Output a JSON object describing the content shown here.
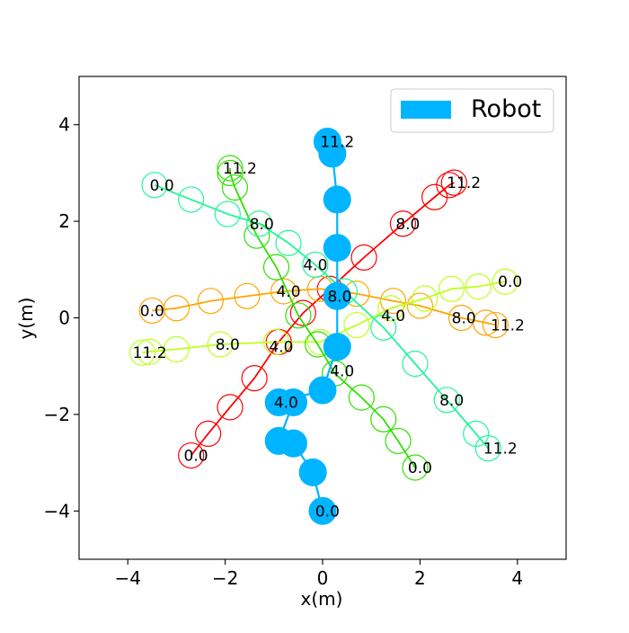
{
  "chart_data": {
    "type": "scatter",
    "xlabel": "x(m)",
    "ylabel": "y(m)",
    "xlim": [
      -5,
      5
    ],
    "ylim": [
      -5,
      5
    ],
    "xticks": [
      -4,
      -2,
      0,
      2,
      4
    ],
    "yticks": [
      -4,
      -2,
      0,
      2,
      4
    ],
    "xtick_labels": [
      "−4",
      "−2",
      "0",
      "2",
      "4"
    ],
    "ytick_labels": [
      "−4",
      "−2",
      "0",
      "2",
      "4"
    ],
    "grid": false,
    "legend": {
      "position": "top-right",
      "entries": [
        {
          "label": "Robot",
          "color": "#00b4ff"
        }
      ]
    },
    "robot": {
      "color": "#00b4ff",
      "path": [
        [
          0.0,
          -4.0
        ],
        [
          -0.2,
          -3.2
        ],
        [
          -0.6,
          -2.6
        ],
        [
          -0.9,
          -2.55
        ],
        [
          -0.6,
          -1.75
        ],
        [
          -0.9,
          -1.75
        ],
        [
          0.0,
          -1.5
        ],
        [
          0.3,
          -0.6
        ],
        [
          0.3,
          0.45
        ],
        [
          0.3,
          1.45
        ],
        [
          0.3,
          2.45
        ],
        [
          0.2,
          3.4
        ],
        [
          0.1,
          3.65
        ]
      ],
      "labels": [
        {
          "text": "0.0",
          "x": 0.1,
          "y": -4.0
        },
        {
          "text": "4.0",
          "x": -0.75,
          "y": -1.75
        },
        {
          "text": "8.0",
          "x": 0.35,
          "y": 0.45
        },
        {
          "text": "11.2",
          "x": 0.3,
          "y": 3.65
        }
      ]
    },
    "humans": [
      {
        "color": "#ff0000",
        "path": [
          [
            -2.7,
            -2.85
          ],
          [
            -2.35,
            -2.4
          ],
          [
            -1.9,
            -1.85
          ],
          [
            -1.4,
            -1.25
          ],
          [
            -0.9,
            -0.5
          ],
          [
            -0.4,
            0.1
          ],
          [
            0.15,
            0.6
          ],
          [
            0.85,
            1.25
          ],
          [
            1.65,
            1.95
          ],
          [
            2.3,
            2.5
          ],
          [
            2.6,
            2.75
          ],
          [
            2.7,
            2.8
          ]
        ],
        "labels": [
          {
            "text": "0.0",
            "x": -2.6,
            "y": -2.85
          },
          {
            "text": "4.0",
            "x": -0.85,
            "y": -0.6
          },
          {
            "text": "8.0",
            "x": 1.75,
            "y": 1.95
          },
          {
            "text": "11.2",
            "x": 2.9,
            "y": 2.8
          }
        ]
      },
      {
        "color": "#ffa500",
        "path": [
          [
            -3.5,
            0.15
          ],
          [
            -3.0,
            0.2
          ],
          [
            -2.3,
            0.35
          ],
          [
            -1.55,
            0.45
          ],
          [
            -0.8,
            0.55
          ],
          [
            -0.05,
            0.6
          ],
          [
            0.7,
            0.5
          ],
          [
            1.45,
            0.35
          ],
          [
            2.0,
            0.25
          ],
          [
            2.85,
            -0.0
          ],
          [
            3.35,
            -0.1
          ],
          [
            3.55,
            -0.15
          ]
        ],
        "labels": [
          {
            "text": "0.0",
            "x": -3.5,
            "y": 0.15
          },
          {
            "text": "4.0",
            "x": -0.7,
            "y": 0.55
          },
          {
            "text": "8.0",
            "x": 2.9,
            "y": 0.0
          },
          {
            "text": "11.2",
            "x": 3.8,
            "y": -0.15
          }
        ]
      },
      {
        "color": "#bfff1e",
        "path": [
          [
            3.75,
            0.75
          ],
          [
            3.2,
            0.65
          ],
          [
            2.65,
            0.6
          ],
          [
            2.1,
            0.4
          ],
          [
            1.4,
            0.2
          ],
          [
            0.7,
            -0.15
          ],
          [
            -0.05,
            -0.5
          ],
          [
            -0.95,
            -0.5
          ],
          [
            -2.1,
            -0.55
          ],
          [
            -3.0,
            -0.65
          ],
          [
            -3.55,
            -0.7
          ],
          [
            -3.7,
            -0.72
          ]
        ],
        "labels": [
          {
            "text": "0.0",
            "x": 3.85,
            "y": 0.75
          },
          {
            "text": "4.0",
            "x": 1.45,
            "y": 0.05
          },
          {
            "text": "8.0",
            "x": -1.95,
            "y": -0.55
          },
          {
            "text": "11.2",
            "x": -3.55,
            "y": -0.72
          }
        ]
      },
      {
        "color": "#2fe000",
        "path": [
          [
            1.9,
            -3.1
          ],
          [
            1.55,
            -2.55
          ],
          [
            1.25,
            -2.1
          ],
          [
            0.8,
            -1.65
          ],
          [
            0.25,
            -1.15
          ],
          [
            -0.1,
            -0.55
          ],
          [
            -0.5,
            0.05
          ],
          [
            -0.95,
            1.05
          ],
          [
            -1.35,
            1.7
          ],
          [
            -1.8,
            2.7
          ],
          [
            -1.9,
            3.0
          ],
          [
            -1.9,
            3.1
          ]
        ],
        "labels": [
          {
            "text": "0.0",
            "x": 2.0,
            "y": -3.1
          },
          {
            "text": "4.0",
            "x": 0.4,
            "y": -1.1
          },
          {
            "text": "8.0",
            "x": -1.25,
            "y": 1.95
          },
          {
            "text": "11.2",
            "x": -1.7,
            "y": 3.1
          }
        ]
      },
      {
        "color": "#20f59a",
        "path": [
          [
            -3.45,
            2.75
          ],
          [
            -2.7,
            2.45
          ],
          [
            -1.95,
            2.15
          ],
          [
            -1.3,
            1.95
          ],
          [
            -0.7,
            1.55
          ],
          [
            -0.15,
            1.1
          ],
          [
            0.45,
            0.55
          ],
          [
            1.25,
            -0.2
          ],
          [
            1.9,
            -0.95
          ],
          [
            2.55,
            -1.7
          ],
          [
            3.15,
            -2.4
          ],
          [
            3.4,
            -2.7
          ]
        ],
        "labels": [
          {
            "text": "0.0",
            "x": -3.3,
            "y": 2.75
          },
          {
            "text": "4.0",
            "x": -0.15,
            "y": 1.1
          },
          {
            "text": "8.0",
            "x": 2.65,
            "y": -1.7
          },
          {
            "text": "11.2",
            "x": 3.65,
            "y": -2.7
          }
        ]
      }
    ]
  }
}
